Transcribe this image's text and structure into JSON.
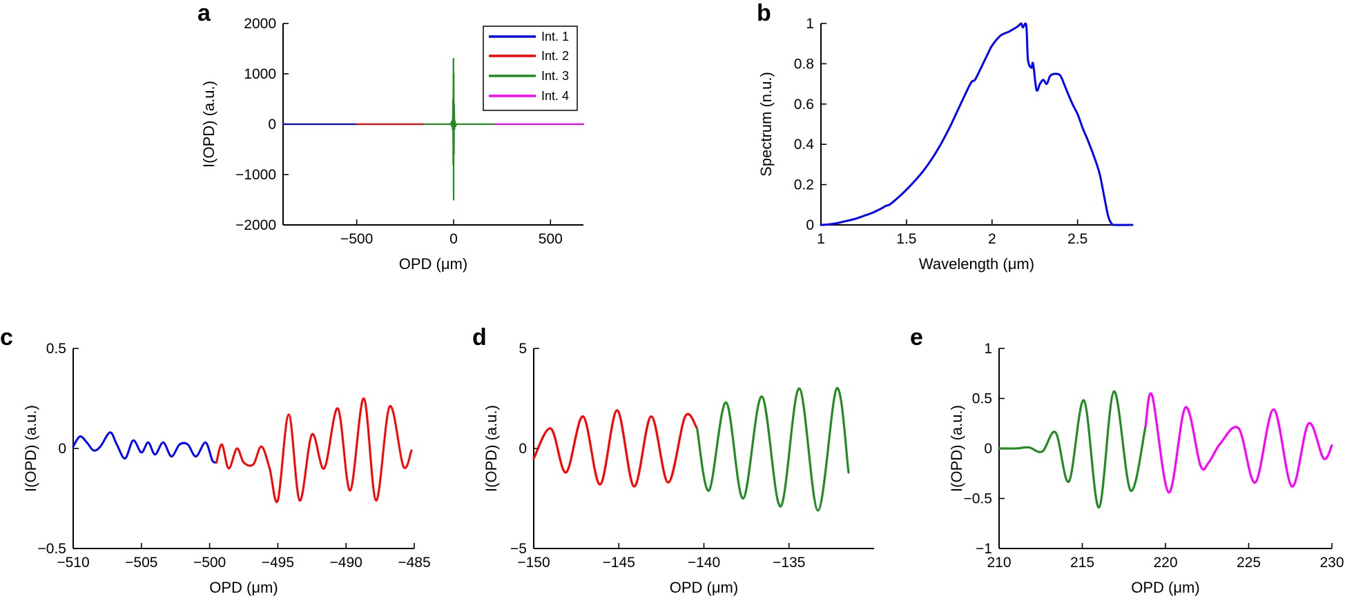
{
  "colors": {
    "int1": "#0000ff",
    "int2": "#ff0000",
    "int3": "#228b22",
    "int4": "#ff00ff",
    "spectrum": "#0000ff"
  },
  "chart_data": [
    {
      "id": "a",
      "type": "line",
      "panel_label": "a",
      "xlabel": "OPD (μm)",
      "ylabel": "I(OPD) (a.u.)",
      "xlim": [
        -880,
        670
      ],
      "ylim": [
        -2000,
        2000
      ],
      "xticks": [
        -500,
        0,
        500
      ],
      "xtick_labels": [
        "−500",
        "0",
        "500"
      ],
      "yticks": [
        2000,
        1000,
        0,
        -1000,
        -2000
      ],
      "ytick_labels": [
        "2000",
        "1000",
        "0",
        "−1000",
        "−2000"
      ],
      "legend": {
        "position": "top-right",
        "entries": [
          "Int. 1",
          "Int. 2",
          "Int. 3",
          "Int. 4"
        ],
        "colors": [
          "int1",
          "int2",
          "int3",
          "int4"
        ]
      },
      "series": [
        {
          "name": "Int. 1",
          "color": "int1",
          "points": [
            [
              -880,
              0
            ],
            [
              -500,
              0
            ]
          ]
        },
        {
          "name": "Int. 2",
          "color": "int2",
          "points": [
            [
              -500,
              0
            ],
            [
              -150,
              0
            ]
          ]
        },
        {
          "name": "Int. 3",
          "color": "int3",
          "points": [
            [
              -150,
              0
            ],
            [
              -40,
              0
            ],
            [
              -15,
              0
            ],
            [
              -12,
              40
            ],
            [
              -10,
              -40
            ],
            [
              -7,
              80
            ],
            [
              -5,
              -120
            ],
            [
              -3,
              500
            ],
            [
              -2,
              -800
            ],
            [
              -1,
              1300
            ],
            [
              0,
              -1500
            ],
            [
              1,
              1000
            ],
            [
              2,
              -600
            ],
            [
              3,
              400
            ],
            [
              5,
              -100
            ],
            [
              7,
              60
            ],
            [
              10,
              -40
            ],
            [
              15,
              0
            ],
            [
              40,
              0
            ],
            [
              215,
              0
            ]
          ]
        },
        {
          "name": "Int. 4",
          "color": "int4",
          "points": [
            [
              215,
              0
            ],
            [
              670,
              0
            ]
          ]
        }
      ]
    },
    {
      "id": "b",
      "type": "line",
      "panel_label": "b",
      "xlabel": "Wavelength (μm)",
      "ylabel": "Spectrum (n.u.)",
      "xlim": [
        1,
        2.82
      ],
      "ylim": [
        0,
        1.0
      ],
      "xticks": [
        1,
        1.5,
        2,
        2.5
      ],
      "xtick_labels": [
        "1",
        "1.5",
        "2",
        "2.5"
      ],
      "yticks": [
        0,
        0.2,
        0.4,
        0.6,
        0.8,
        1
      ],
      "ytick_labels": [
        "0",
        "0.2",
        "0.4",
        "0.6",
        "0.8",
        "1"
      ],
      "series": [
        {
          "name": "Spectrum",
          "color": "spectrum",
          "points": [
            [
              1,
              0
            ],
            [
              1.05,
              0.003
            ],
            [
              1.1,
              0.01
            ],
            [
              1.15,
              0.02
            ],
            [
              1.2,
              0.03
            ],
            [
              1.25,
              0.045
            ],
            [
              1.3,
              0.06
            ],
            [
              1.35,
              0.08
            ],
            [
              1.38,
              0.095
            ],
            [
              1.4,
              0.1
            ],
            [
              1.45,
              0.135
            ],
            [
              1.5,
              0.175
            ],
            [
              1.55,
              0.22
            ],
            [
              1.6,
              0.27
            ],
            [
              1.65,
              0.33
            ],
            [
              1.7,
              0.4
            ],
            [
              1.75,
              0.48
            ],
            [
              1.8,
              0.57
            ],
            [
              1.85,
              0.66
            ],
            [
              1.88,
              0.71
            ],
            [
              1.9,
              0.72
            ],
            [
              1.93,
              0.77
            ],
            [
              1.97,
              0.84
            ],
            [
              2.0,
              0.89
            ],
            [
              2.05,
              0.94
            ],
            [
              2.1,
              0.96
            ],
            [
              2.15,
              0.985
            ],
            [
              2.17,
              1.0
            ],
            [
              2.18,
              0.98
            ],
            [
              2.2,
              0.99
            ],
            [
              2.21,
              0.82
            ],
            [
              2.23,
              0.78
            ],
            [
              2.24,
              0.8
            ],
            [
              2.26,
              0.67
            ],
            [
              2.28,
              0.7
            ],
            [
              2.3,
              0.72
            ],
            [
              2.32,
              0.7
            ],
            [
              2.34,
              0.74
            ],
            [
              2.37,
              0.75
            ],
            [
              2.4,
              0.74
            ],
            [
              2.43,
              0.68
            ],
            [
              2.47,
              0.6
            ],
            [
              2.5,
              0.55
            ],
            [
              2.53,
              0.48
            ],
            [
              2.56,
              0.42
            ],
            [
              2.6,
              0.33
            ],
            [
              2.63,
              0.25
            ],
            [
              2.66,
              0.12
            ],
            [
              2.68,
              0.04
            ],
            [
              2.7,
              0.005
            ],
            [
              2.72,
              0
            ],
            [
              2.82,
              0
            ]
          ]
        }
      ]
    },
    {
      "id": "c",
      "type": "line",
      "panel_label": "c",
      "xlabel": "OPD (μm)",
      "ylabel": "I(OPD) (a.u.)",
      "xlim": [
        -510,
        -485
      ],
      "ylim": [
        -0.5,
        0.5
      ],
      "xticks": [
        -510,
        -505,
        -500,
        -495,
        -490,
        -485
      ],
      "xtick_labels": [
        "−510",
        "−505",
        "−500",
        "−495",
        "−490",
        "−485"
      ],
      "yticks": [
        0.5,
        0,
        -0.5
      ],
      "ytick_labels": [
        "0.5",
        "0",
        "−0.5"
      ],
      "series": [
        {
          "name": "Int. 1",
          "color": "int1",
          "points": [
            [
              -510,
              0.01
            ],
            [
              -509.5,
              0.06
            ],
            [
              -509,
              0.03
            ],
            [
              -508.5,
              -0.01
            ],
            [
              -508,
              0.01
            ],
            [
              -507.3,
              0.08
            ],
            [
              -506.8,
              0.02
            ],
            [
              -506.2,
              -0.05
            ],
            [
              -505.6,
              0.04
            ],
            [
              -505,
              -0.02
            ],
            [
              -504.5,
              0.03
            ],
            [
              -504,
              -0.03
            ],
            [
              -503.4,
              0.03
            ],
            [
              -502.8,
              -0.04
            ],
            [
              -502.2,
              0.02
            ],
            [
              -501.6,
              0.02
            ],
            [
              -501,
              -0.04
            ],
            [
              -500.3,
              0.03
            ],
            [
              -499.8,
              -0.06
            ],
            [
              -499.5,
              -0.07
            ]
          ]
        },
        {
          "name": "Int. 2",
          "color": "int2",
          "points": [
            [
              -499.5,
              -0.07
            ],
            [
              -499.1,
              0.02
            ],
            [
              -498.6,
              -0.1
            ],
            [
              -498,
              0.0
            ],
            [
              -497.5,
              -0.07
            ],
            [
              -496.8,
              -0.08
            ],
            [
              -496.2,
              0.01
            ],
            [
              -495.6,
              -0.1
            ],
            [
              -495,
              -0.26
            ],
            [
              -494.2,
              0.17
            ],
            [
              -493.4,
              -0.26
            ],
            [
              -492.5,
              0.07
            ],
            [
              -491.6,
              -0.1
            ],
            [
              -490.6,
              0.2
            ],
            [
              -489.7,
              -0.21
            ],
            [
              -488.7,
              0.25
            ],
            [
              -487.8,
              -0.26
            ],
            [
              -486.8,
              0.21
            ],
            [
              -485.8,
              -0.09
            ],
            [
              -485.2,
              -0.01
            ]
          ]
        }
      ]
    },
    {
      "id": "d",
      "type": "line",
      "panel_label": "d",
      "xlabel": "OPD (μm)",
      "ylabel": "I(OPD) (a.u.)",
      "xlim": [
        -150,
        -130
      ],
      "ylim": [
        -5,
        5
      ],
      "xticks": [
        -150,
        -145,
        -140,
        -135
      ],
      "xtick_labels": [
        "−150",
        "−145",
        "−140",
        "−135"
      ],
      "yticks": [
        5,
        0,
        -5
      ],
      "ytick_labels": [
        "5",
        "0",
        "−5"
      ],
      "series": [
        {
          "name": "Int. 2",
          "color": "int2",
          "points": [
            [
              -150,
              -0.5
            ],
            [
              -149,
              1.0
            ],
            [
              -148.1,
              -1.2
            ],
            [
              -147.1,
              1.6
            ],
            [
              -146.1,
              -1.8
            ],
            [
              -145.1,
              1.9
            ],
            [
              -144.1,
              -1.9
            ],
            [
              -143.1,
              1.6
            ],
            [
              -142.1,
              -1.7
            ],
            [
              -141.1,
              1.6
            ],
            [
              -140.4,
              1.0
            ]
          ]
        },
        {
          "name": "Int. 3",
          "color": "int3",
          "points": [
            [
              -140.4,
              1.0
            ],
            [
              -139.7,
              -2.1
            ],
            [
              -138.7,
              2.3
            ],
            [
              -137.7,
              -2.5
            ],
            [
              -136.6,
              2.6
            ],
            [
              -135.5,
              -2.9
            ],
            [
              -134.4,
              3.0
            ],
            [
              -133.3,
              -3.1
            ],
            [
              -132.2,
              3.0
            ],
            [
              -131.5,
              -1.2
            ]
          ]
        }
      ]
    },
    {
      "id": "e",
      "type": "line",
      "panel_label": "e",
      "xlabel": "OPD (μm)",
      "ylabel": "I(OPD) (a.u.)",
      "xlim": [
        210,
        230
      ],
      "ylim": [
        -1,
        1
      ],
      "xticks": [
        210,
        215,
        220,
        225,
        230
      ],
      "xtick_labels": [
        "210",
        "215",
        "220",
        "225",
        "230"
      ],
      "yticks": [
        1,
        0.5,
        0,
        -0.5,
        -1
      ],
      "ytick_labels": [
        "1",
        "0.5",
        "0",
        "−0.5",
        "−1"
      ],
      "series": [
        {
          "name": "Int. 3",
          "color": "int3",
          "points": [
            [
              210,
              0.0
            ],
            [
              211,
              0.0
            ],
            [
              211.8,
              0.01
            ],
            [
              212.6,
              -0.03
            ],
            [
              213.4,
              0.16
            ],
            [
              214.2,
              -0.33
            ],
            [
              215.1,
              0.48
            ],
            [
              216,
              -0.59
            ],
            [
              216.9,
              0.57
            ],
            [
              217.9,
              -0.42
            ],
            [
              218.8,
              0.22
            ]
          ]
        },
        {
          "name": "Int. 4",
          "color": "int4",
          "points": [
            [
              218.8,
              0.22
            ],
            [
              219.2,
              0.53
            ],
            [
              220.2,
              -0.44
            ],
            [
              221.2,
              0.41
            ],
            [
              222.1,
              -0.17
            ],
            [
              222.6,
              -0.14
            ],
            [
              223.3,
              0.05
            ],
            [
              224.4,
              0.2
            ],
            [
              225.4,
              -0.34
            ],
            [
              226.5,
              0.39
            ],
            [
              227.6,
              -0.38
            ],
            [
              228.6,
              0.25
            ],
            [
              229.5,
              -0.1
            ],
            [
              230,
              0.03
            ]
          ]
        }
      ]
    }
  ]
}
